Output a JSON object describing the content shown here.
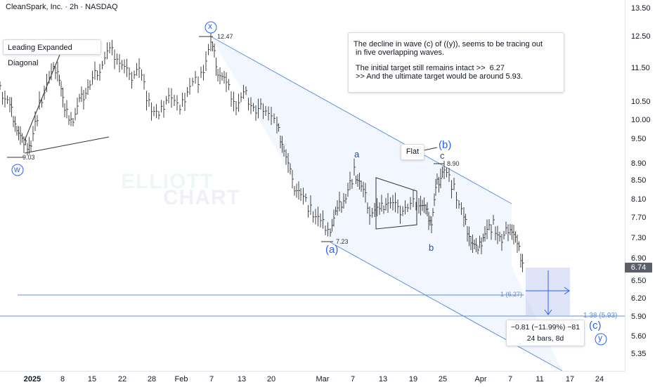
{
  "header": {
    "symbol_line": "CleanSpark, Inc. · 2h · NASDAQ"
  },
  "price_axis": {
    "labels": [
      "13.50",
      "12.50",
      "11.50",
      "10.50",
      "10.00",
      "9.50",
      "8.90",
      "8.50",
      "8.10",
      "7.70",
      "7.30",
      "6.90",
      "6.50",
      "6.20",
      "5.90",
      "5.60",
      "5.35"
    ],
    "current_price": "6.74"
  },
  "time_axis": {
    "labels": [
      "2025",
      "8",
      "15",
      "22",
      "28",
      "Feb",
      "7",
      "13",
      "20",
      "Mar",
      "7",
      "13",
      "19",
      "25",
      "Apr",
      "7",
      "11",
      "17",
      "24"
    ]
  },
  "annotation": {
    "line1": "The decline in wave (c) of ((y)), seems to be tracing out",
    "line2": " in five overlapping waves.",
    "line3": " The initial target still remains intact >>  6.27",
    "line4": " >> And the ultimate target would be around 5.93."
  },
  "pattern_label": "Leading Expanded Diagonal",
  "flat_label": "Flat",
  "waves": {
    "w": "w",
    "x": "x",
    "y": "y",
    "a_paren": "(a)",
    "b_paren": "(b)",
    "c_paren": "(c)",
    "a": "a",
    "b": "b",
    "c": "c"
  },
  "price_marks": {
    "low_w": "9.03",
    "high_x": "12.47",
    "low_a": "7.23",
    "high_b": "8.90"
  },
  "fib_levels": {
    "target1": "1 (6.27)",
    "target2": "1.38 (5.93)"
  },
  "measure": {
    "line1": "−0.81 (−11.99%) −81",
    "line2": "24 bars, 8d"
  },
  "watermark": {
    "line1": "ELLIOTT",
    "line2": "CHART"
  },
  "colors": {
    "wave_blue": "#2962ff",
    "line_blue": "#5b8fe0",
    "channel_fill": "#eef3fd",
    "candle": "#444444"
  }
}
